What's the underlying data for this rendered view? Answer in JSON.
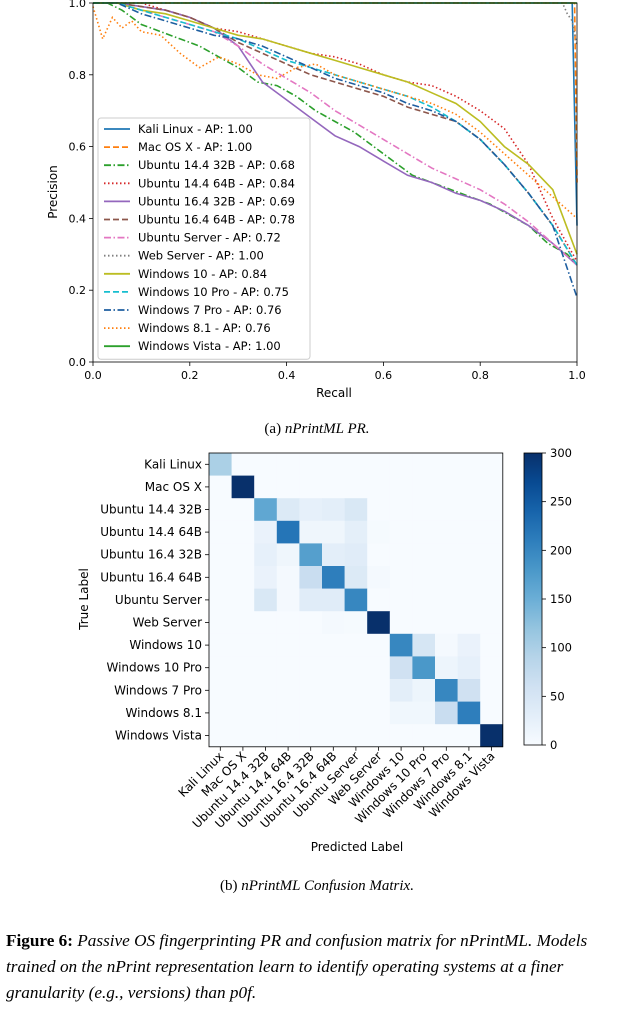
{
  "chart_data": [
    {
      "type": "line",
      "title": "",
      "xlabel": "Recall",
      "ylabel": "Precision",
      "xlim": [
        0,
        1
      ],
      "ylim": [
        0,
        1
      ],
      "xticks": [
        "0.0",
        "0.2",
        "0.4",
        "0.6",
        "0.8",
        "1.0"
      ],
      "yticks": [
        "0.0",
        "0.2",
        "0.4",
        "0.6",
        "0.8",
        "1.0"
      ],
      "legend_position": "lower-left",
      "series": [
        {
          "name": "Kali Linux - AP: 1.00",
          "color": "#1f77b4",
          "dash": "solid",
          "x": [
            0,
            0.99,
            1.0
          ],
          "y": [
            1.0,
            1.0,
            0.38
          ]
        },
        {
          "name": "Mac OS X - AP: 1.00",
          "color": "#ff7f0e",
          "dash": "dashed",
          "x": [
            0,
            0.995,
            1.0
          ],
          "y": [
            1.0,
            1.0,
            0.5
          ]
        },
        {
          "name": "Ubuntu 14.4 32B - AP: 0.68",
          "color": "#2ca02c",
          "dash": "dashdot",
          "x": [
            0.0,
            0.03,
            0.06,
            0.1,
            0.14,
            0.18,
            0.22,
            0.26,
            0.3,
            0.34,
            0.38,
            0.42,
            0.46,
            0.5,
            0.54,
            0.58,
            0.62,
            0.66,
            0.7,
            0.74,
            0.78,
            0.82,
            0.86,
            0.9,
            0.94,
            0.98,
            1.0
          ],
          "y": [
            1.0,
            1.0,
            0.98,
            0.94,
            0.92,
            0.9,
            0.88,
            0.85,
            0.82,
            0.78,
            0.77,
            0.74,
            0.7,
            0.67,
            0.64,
            0.6,
            0.56,
            0.52,
            0.5,
            0.48,
            0.46,
            0.44,
            0.41,
            0.38,
            0.33,
            0.3,
            0.27
          ]
        },
        {
          "name": "Ubuntu 14.4 64B - AP: 0.84",
          "color": "#d62728",
          "dash": "dotted",
          "x": [
            0.0,
            0.05,
            0.1,
            0.15,
            0.2,
            0.25,
            0.3,
            0.35,
            0.4,
            0.45,
            0.5,
            0.55,
            0.6,
            0.65,
            0.7,
            0.75,
            0.8,
            0.85,
            0.9,
            0.95,
            1.0
          ],
          "y": [
            1.0,
            1.0,
            1.0,
            0.98,
            0.96,
            0.93,
            0.92,
            0.9,
            0.88,
            0.86,
            0.85,
            0.83,
            0.8,
            0.78,
            0.77,
            0.74,
            0.7,
            0.65,
            0.55,
            0.4,
            0.28
          ]
        },
        {
          "name": "Ubuntu 16.4 32B - AP: 0.69",
          "color": "#9467bd",
          "dash": "solid",
          "x": [
            0.0,
            0.05,
            0.1,
            0.15,
            0.2,
            0.25,
            0.3,
            0.35,
            0.4,
            0.45,
            0.5,
            0.55,
            0.6,
            0.65,
            0.7,
            0.75,
            0.8,
            0.85,
            0.9,
            0.95,
            1.0
          ],
          "y": [
            1.0,
            1.0,
            0.99,
            0.98,
            0.96,
            0.93,
            0.88,
            0.78,
            0.73,
            0.68,
            0.63,
            0.6,
            0.56,
            0.52,
            0.5,
            0.47,
            0.45,
            0.42,
            0.38,
            0.33,
            0.27
          ]
        },
        {
          "name": "Ubuntu 16.4 64B - AP: 0.78",
          "color": "#8c564b",
          "dash": "dashed",
          "x": [
            0.0,
            0.05,
            0.1,
            0.15,
            0.2,
            0.25,
            0.3,
            0.35,
            0.4,
            0.45,
            0.5,
            0.55,
            0.6,
            0.65,
            0.7,
            0.75,
            0.8,
            0.85,
            0.9,
            0.95,
            1.0
          ],
          "y": [
            1.0,
            1.0,
            0.99,
            0.98,
            0.96,
            0.93,
            0.89,
            0.86,
            0.83,
            0.8,
            0.78,
            0.76,
            0.74,
            0.71,
            0.69,
            0.67,
            0.62,
            0.55,
            0.47,
            0.38,
            0.27
          ]
        },
        {
          "name": "Ubuntu Server - AP: 0.72",
          "color": "#e377c2",
          "dash": "dashdot",
          "x": [
            0.0,
            0.05,
            0.1,
            0.15,
            0.2,
            0.25,
            0.3,
            0.35,
            0.4,
            0.45,
            0.5,
            0.55,
            0.6,
            0.65,
            0.7,
            0.75,
            0.8,
            0.85,
            0.9,
            0.95,
            1.0
          ],
          "y": [
            1.0,
            1.0,
            0.98,
            0.96,
            0.94,
            0.92,
            0.88,
            0.83,
            0.79,
            0.75,
            0.7,
            0.66,
            0.62,
            0.58,
            0.54,
            0.51,
            0.48,
            0.44,
            0.39,
            0.33,
            0.27
          ]
        },
        {
          "name": "Web Server - AP: 1.00",
          "color": "#7f7f7f",
          "dash": "dotted",
          "x": [
            0.0,
            0.97,
            0.98,
            0.99,
            1.0
          ],
          "y": [
            1.0,
            1.0,
            0.97,
            0.95,
            0.88
          ]
        },
        {
          "name": "Windows 10 - AP: 0.84",
          "color": "#bcbd22",
          "dash": "solid",
          "x": [
            0.0,
            0.05,
            0.1,
            0.15,
            0.2,
            0.25,
            0.3,
            0.35,
            0.4,
            0.45,
            0.5,
            0.55,
            0.6,
            0.65,
            0.7,
            0.75,
            0.8,
            0.85,
            0.9,
            0.95,
            1.0
          ],
          "y": [
            1.0,
            1.0,
            0.98,
            0.97,
            0.95,
            0.93,
            0.91,
            0.9,
            0.88,
            0.86,
            0.84,
            0.82,
            0.8,
            0.78,
            0.75,
            0.72,
            0.67,
            0.6,
            0.55,
            0.48,
            0.3
          ]
        },
        {
          "name": "Windows 10 Pro - AP: 0.75",
          "color": "#17becf",
          "dash": "dashed",
          "x": [
            0.0,
            0.05,
            0.1,
            0.15,
            0.2,
            0.25,
            0.3,
            0.35,
            0.4,
            0.45,
            0.5,
            0.55,
            0.6,
            0.65,
            0.7,
            0.75,
            0.8,
            0.85,
            0.9,
            0.95,
            1.0
          ],
          "y": [
            1.0,
            1.0,
            0.98,
            0.96,
            0.94,
            0.92,
            0.9,
            0.87,
            0.84,
            0.82,
            0.8,
            0.78,
            0.76,
            0.74,
            0.71,
            0.67,
            0.62,
            0.55,
            0.47,
            0.38,
            0.27
          ]
        },
        {
          "name": "Windows 7 Pro - AP: 0.76",
          "color": "#1f5fa0",
          "dash": "dashdot",
          "x": [
            0.0,
            0.05,
            0.1,
            0.15,
            0.2,
            0.25,
            0.3,
            0.35,
            0.4,
            0.45,
            0.5,
            0.55,
            0.6,
            0.65,
            0.7,
            0.75,
            0.8,
            0.85,
            0.9,
            0.95,
            1.0
          ],
          "y": [
            1.0,
            1.0,
            0.97,
            0.95,
            0.93,
            0.91,
            0.9,
            0.88,
            0.85,
            0.82,
            0.79,
            0.77,
            0.75,
            0.72,
            0.7,
            0.67,
            0.62,
            0.55,
            0.47,
            0.38,
            0.18
          ]
        },
        {
          "name": "Windows 8.1 - AP: 0.76",
          "color": "#ff7f0e",
          "dash": "dotted",
          "x": [
            0.0,
            0.02,
            0.04,
            0.06,
            0.08,
            0.1,
            0.14,
            0.18,
            0.22,
            0.26,
            0.3,
            0.34,
            0.38,
            0.42,
            0.46,
            0.5,
            0.55,
            0.6,
            0.65,
            0.7,
            0.75,
            0.8,
            0.85,
            0.9,
            0.95,
            1.0
          ],
          "y": [
            0.99,
            0.9,
            0.96,
            0.93,
            0.95,
            0.92,
            0.91,
            0.86,
            0.82,
            0.85,
            0.83,
            0.8,
            0.79,
            0.82,
            0.83,
            0.8,
            0.78,
            0.76,
            0.74,
            0.72,
            0.69,
            0.64,
            0.58,
            0.52,
            0.46,
            0.4
          ]
        },
        {
          "name": "Windows Vista - AP: 1.00",
          "color": "#2ca02c",
          "dash": "solid",
          "x": [
            0,
            1.0
          ],
          "y": [
            1.0,
            1.0
          ]
        }
      ]
    },
    {
      "type": "heatmap",
      "title": "",
      "xlabel": "Predicted Label",
      "ylabel": "True Label",
      "labels": [
        "Kali Linux",
        "Mac OS X",
        "Ubuntu 14.4 32B",
        "Ubuntu 14.4 64B",
        "Ubuntu 16.4 32B",
        "Ubuntu 16.4 64B",
        "Ubuntu Server",
        "Web Server",
        "Windows 10",
        "Windows 10 Pro",
        "Windows 7 Pro",
        "Windows 8.1",
        "Windows Vista"
      ],
      "matrix": [
        [
          100,
          0,
          0,
          0,
          0,
          0,
          0,
          0,
          0,
          0,
          0,
          0,
          0
        ],
        [
          0,
          300,
          0,
          0,
          0,
          0,
          0,
          0,
          0,
          0,
          0,
          0,
          0
        ],
        [
          0,
          0,
          160,
          40,
          25,
          30,
          45,
          0,
          0,
          0,
          0,
          0,
          0
        ],
        [
          0,
          0,
          20,
          220,
          12,
          12,
          28,
          3,
          0,
          0,
          0,
          0,
          0
        ],
        [
          0,
          0,
          25,
          12,
          170,
          30,
          35,
          0,
          0,
          0,
          0,
          0,
          0
        ],
        [
          0,
          0,
          20,
          5,
          70,
          210,
          40,
          5,
          0,
          0,
          0,
          0,
          0
        ],
        [
          0,
          0,
          45,
          5,
          35,
          35,
          200,
          0,
          0,
          0,
          0,
          0,
          0
        ],
        [
          0,
          0,
          0,
          0,
          0,
          5,
          3,
          300,
          0,
          0,
          0,
          0,
          0
        ],
        [
          0,
          0,
          0,
          0,
          0,
          0,
          0,
          0,
          200,
          50,
          5,
          20,
          0
        ],
        [
          0,
          0,
          0,
          0,
          0,
          0,
          0,
          0,
          60,
          180,
          15,
          25,
          0
        ],
        [
          0,
          0,
          0,
          0,
          0,
          0,
          0,
          0,
          30,
          15,
          200,
          60,
          0
        ],
        [
          0,
          0,
          0,
          0,
          0,
          0,
          0,
          0,
          10,
          10,
          70,
          210,
          0
        ],
        [
          0,
          0,
          0,
          0,
          0,
          0,
          0,
          0,
          0,
          0,
          0,
          0,
          300
        ]
      ],
      "colorbar": {
        "min": 0,
        "max": 300,
        "ticks": [
          "0",
          "50",
          "100",
          "150",
          "200",
          "250",
          "300"
        ]
      }
    }
  ],
  "captions": {
    "a_label": "(a)",
    "a_text": "nPrintML PR.",
    "b_label": "(b)",
    "b_text": "nPrintML Confusion Matrix.",
    "figure_label": "Figure 6:",
    "figure_text": "Passive OS fingerprinting PR and confusion matrix for nPrintML. Models trained on the nPrint representation learn to identify operating systems at a finer granularity (e.g., versions) than p0f."
  }
}
